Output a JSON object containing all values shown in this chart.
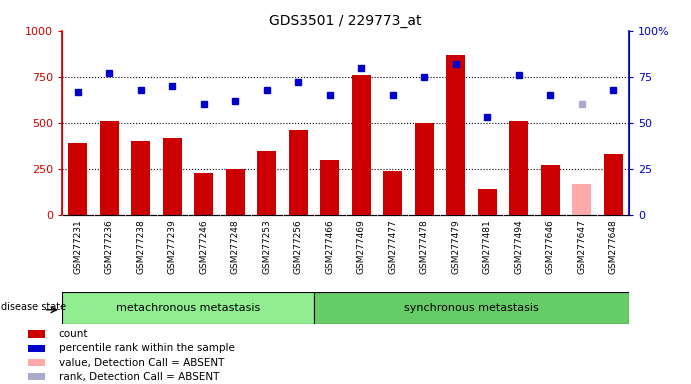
{
  "title": "GDS3501 / 229773_at",
  "samples": [
    "GSM277231",
    "GSM277236",
    "GSM277238",
    "GSM277239",
    "GSM277246",
    "GSM277248",
    "GSM277253",
    "GSM277256",
    "GSM277466",
    "GSM277469",
    "GSM277477",
    "GSM277478",
    "GSM277479",
    "GSM277481",
    "GSM277494",
    "GSM277646",
    "GSM277647",
    "GSM277648"
  ],
  "bar_values": [
    390,
    510,
    400,
    420,
    230,
    250,
    350,
    460,
    300,
    760,
    240,
    500,
    870,
    140,
    510,
    270,
    170,
    330
  ],
  "bar_colors": [
    "#cc0000",
    "#cc0000",
    "#cc0000",
    "#cc0000",
    "#cc0000",
    "#cc0000",
    "#cc0000",
    "#cc0000",
    "#cc0000",
    "#cc0000",
    "#cc0000",
    "#cc0000",
    "#cc0000",
    "#cc0000",
    "#cc0000",
    "#cc0000",
    "#ffaaaa",
    "#cc0000"
  ],
  "dot_values": [
    67,
    77,
    68,
    70,
    60,
    62,
    68,
    72,
    65,
    80,
    65,
    75,
    82,
    53,
    76,
    65,
    60,
    68
  ],
  "dot_colors": [
    "#0000cc",
    "#0000cc",
    "#0000cc",
    "#0000cc",
    "#0000cc",
    "#0000cc",
    "#0000cc",
    "#0000cc",
    "#0000cc",
    "#0000cc",
    "#0000cc",
    "#0000cc",
    "#0000cc",
    "#0000cc",
    "#0000cc",
    "#0000cc",
    "#aaaacc",
    "#0000cc"
  ],
  "group1_count": 8,
  "group1_label": "metachronous metastasis",
  "group2_label": "synchronous metastasis",
  "disease_state_label": "disease state",
  "ylim_left": [
    0,
    1000
  ],
  "ylim_right": [
    0,
    100
  ],
  "yticks_left": [
    0,
    250,
    500,
    750,
    1000
  ],
  "yticks_right": [
    0,
    25,
    50,
    75,
    100
  ],
  "legend_items": [
    {
      "label": "count",
      "color": "#cc0000"
    },
    {
      "label": "percentile rank within the sample",
      "color": "#0000cc"
    },
    {
      "label": "value, Detection Call = ABSENT",
      "color": "#ffaaaa"
    },
    {
      "label": "rank, Detection Call = ABSENT",
      "color": "#aaaacc"
    }
  ]
}
